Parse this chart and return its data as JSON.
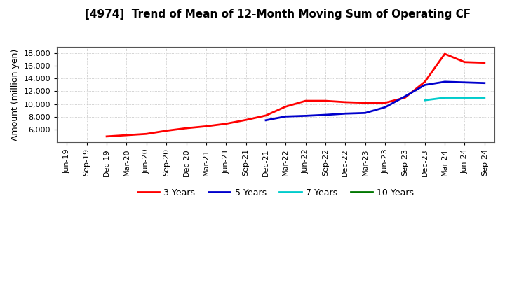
{
  "title": "[4974]  Trend of Mean of 12-Month Moving Sum of Operating CF",
  "ylabel": "Amount (million yen)",
  "ylim": [
    4000,
    19000
  ],
  "yticks": [
    6000,
    8000,
    10000,
    12000,
    14000,
    16000,
    18000
  ],
  "background_color": "#ffffff",
  "grid_color": "#aaaaaa",
  "x_labels": [
    "Jun-19",
    "Sep-19",
    "Dec-19",
    "Mar-20",
    "Jun-20",
    "Sep-20",
    "Dec-20",
    "Mar-21",
    "Jun-21",
    "Sep-21",
    "Dec-21",
    "Mar-22",
    "Jun-22",
    "Sep-22",
    "Dec-22",
    "Mar-23",
    "Jun-23",
    "Sep-23",
    "Dec-23",
    "Mar-24",
    "Jun-24",
    "Sep-24"
  ],
  "series": {
    "3 Years": {
      "color": "#ff0000",
      "data_x": [
        2,
        3,
        4,
        5,
        6,
        7,
        8,
        9,
        10,
        11,
        12,
        13,
        14,
        15,
        16,
        17,
        18,
        19,
        20,
        21
      ],
      "data_y": [
        4900,
        5100,
        5300,
        5800,
        6200,
        6500,
        6900,
        7500,
        8200,
        9600,
        10500,
        10500,
        10300,
        10200,
        10200,
        11000,
        13500,
        17900,
        16600,
        16500
      ]
    },
    "5 Years": {
      "color": "#0000cc",
      "data_x": [
        10,
        11,
        12,
        13,
        14,
        15,
        16,
        17,
        18,
        19,
        20,
        21
      ],
      "data_y": [
        7450,
        8050,
        8150,
        8300,
        8500,
        8600,
        9500,
        11200,
        13000,
        13500,
        13400,
        13300
      ]
    },
    "7 Years": {
      "color": "#00cccc",
      "data_x": [
        18,
        19,
        20,
        21
      ],
      "data_y": [
        10600,
        11000,
        11000,
        11000
      ]
    },
    "10 Years": {
      "color": "#007700",
      "data_x": [],
      "data_y": []
    }
  },
  "legend_order": [
    "3 Years",
    "5 Years",
    "7 Years",
    "10 Years"
  ]
}
